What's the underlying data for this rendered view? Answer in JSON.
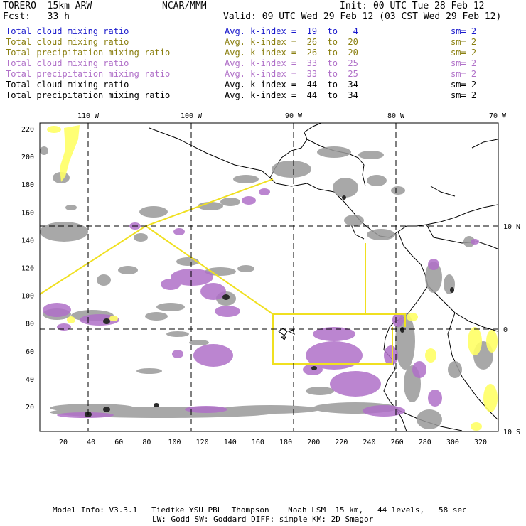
{
  "header": {
    "model": "TORERO  15km ARW",
    "org": "NCAR/MMM",
    "init": "Init: 00 UTC Tue 28 Feb 12",
    "fcst": "Fcst:   33 h",
    "valid": "Valid: 09 UTC Wed 29 Feb 12 (03 CST Wed 29 Feb 12)"
  },
  "legend_rows": [
    {
      "field": "Total cloud mixing ratio",
      "kindex": "Avg. k-index =  19  to   4",
      "sm": "sm= 2",
      "color": "#1a1acc"
    },
    {
      "field": "Total cloud mixing ratio",
      "kindex": "Avg. k-index =  26  to  20",
      "sm": "sm= 2",
      "color": "#8a7f10"
    },
    {
      "field": "Total precipitation mixing ratio",
      "kindex": "Avg. k-index =  26  to  20",
      "sm": "sm= 2",
      "color": "#8a7f10"
    },
    {
      "field": "Total cloud mixing ratio",
      "kindex": "Avg. k-index =  33  to  25",
      "sm": "sm= 2",
      "color": "#b070c8"
    },
    {
      "field": "Total precipitation mixing ratio",
      "kindex": "Avg. k-index =  33  to  25",
      "sm": "sm= 2",
      "color": "#b070c8"
    },
    {
      "field": "Total cloud mixing ratio",
      "kindex": "Avg. k-index =  44  to  34",
      "sm": "sm= 2",
      "color": "#000000"
    },
    {
      "field": "Total precipitation mixing ratio",
      "kindex": "Avg. k-index =  44  to  34",
      "sm": "sm= 2",
      "color": "#000000"
    }
  ],
  "map": {
    "lon_labels": [
      "110 W",
      "100 W",
      "90 W",
      "80 W",
      "70 W"
    ],
    "lat_labels": [
      "10 N",
      "0",
      "10 S"
    ],
    "y_ticks": [
      "220",
      "200",
      "180",
      "160",
      "140",
      "120",
      "100",
      "80",
      "60",
      "40",
      "20"
    ],
    "x_ticks": [
      "20",
      "40",
      "60",
      "80",
      "100",
      "120",
      "140",
      "160",
      "180",
      "200",
      "220",
      "240",
      "260",
      "280",
      "300",
      "320"
    ],
    "colors": {
      "gray": "#9a9a9a",
      "dark": "#333333",
      "violet": "#b070c8",
      "yellow": "#ffff66",
      "track": "#f0e020",
      "coast": "#000000"
    }
  },
  "footer": {
    "line1": "Model Info: V3.3.1   Tiedtke YSU PBL  Thompson    Noah LSM  15 km,   44 levels,   58 sec",
    "line2": "LW: Godd SW: Goddard DIFF: simple KM: 2D Smagor"
  }
}
